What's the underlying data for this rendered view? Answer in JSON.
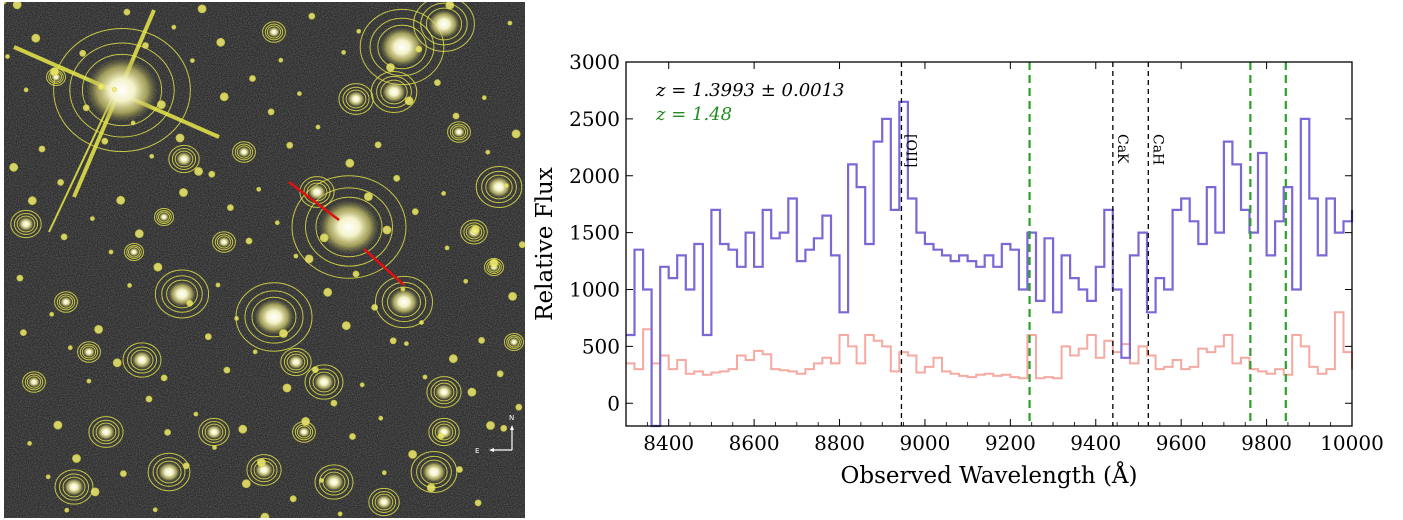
{
  "image_panel": {
    "compass": {
      "north_label": "N",
      "east_label": "E"
    },
    "colors": {
      "background": "#2b2b2b",
      "contour": "#e8e84a",
      "slit": "#e01010"
    }
  },
  "chart_data": {
    "type": "line",
    "title": "",
    "xlabel": "Observed Wavelength (Å)",
    "ylabel": "Relative Flux",
    "xlim": [
      8300,
      10000
    ],
    "ylim": [
      -200,
      3000
    ],
    "xticks": [
      8400,
      8600,
      8800,
      9000,
      9200,
      9400,
      9600,
      9800,
      10000
    ],
    "yticks": [
      0,
      500,
      1000,
      1500,
      2000,
      2500,
      3000
    ],
    "annotations": [
      {
        "text": "z = 1.3993 ± 0.0013",
        "color": "#000000"
      },
      {
        "text": "z = 1.48",
        "color": "#228B22"
      }
    ],
    "lines": [
      {
        "label": "[OII]",
        "x": 8945,
        "color": "#000000",
        "style": "dashed"
      },
      {
        "label": "CaK",
        "x": 9440,
        "color": "#000000",
        "style": "dashed"
      },
      {
        "label": "CaH",
        "x": 9523,
        "color": "#000000",
        "style": "dashed"
      },
      {
        "label": "",
        "x": 9245,
        "color": "#2ca02c",
        "style": "dashed"
      },
      {
        "label": "",
        "x": 9762,
        "color": "#2ca02c",
        "style": "dashed"
      },
      {
        "label": "",
        "x": 9845,
        "color": "#2ca02c",
        "style": "dashed"
      }
    ],
    "series": [
      {
        "color": "#7b68d6",
        "style": "steps",
        "x": [
          8300,
          8320,
          8340,
          8360,
          8380,
          8400,
          8420,
          8440,
          8460,
          8480,
          8500,
          8520,
          8540,
          8560,
          8580,
          8600,
          8620,
          8640,
          8660,
          8680,
          8700,
          8720,
          8740,
          8760,
          8780,
          8800,
          8820,
          8840,
          8860,
          8880,
          8900,
          8920,
          8940,
          8960,
          8980,
          9000,
          9020,
          9040,
          9060,
          9080,
          9100,
          9120,
          9140,
          9160,
          9180,
          9200,
          9220,
          9240,
          9260,
          9280,
          9300,
          9320,
          9340,
          9360,
          9380,
          9400,
          9420,
          9440,
          9460,
          9480,
          9500,
          9520,
          9540,
          9560,
          9580,
          9600,
          9620,
          9640,
          9660,
          9680,
          9700,
          9720,
          9740,
          9760,
          9780,
          9800,
          9820,
          9840,
          9860,
          9880,
          9900,
          9920,
          9940,
          9960,
          9980,
          10000
        ],
        "values": [
          600,
          1350,
          1000,
          -200,
          1200,
          1100,
          1300,
          1000,
          1400,
          600,
          1700,
          1400,
          1350,
          1200,
          1500,
          1200,
          1700,
          1450,
          1500,
          1800,
          1250,
          1350,
          1450,
          1650,
          1300,
          800,
          2100,
          1900,
          1400,
          2300,
          2500,
          1700,
          2650,
          1800,
          1500,
          1400,
          1350,
          1300,
          1250,
          1300,
          1250,
          1200,
          1300,
          1200,
          1400,
          1350,
          1000,
          1500,
          900,
          1450,
          800,
          1300,
          1100,
          1000,
          900,
          1200,
          1700,
          1000,
          400,
          1300,
          1500,
          800,
          1100,
          1000,
          1700,
          1800,
          1600,
          1400,
          1900,
          1500,
          2300,
          2100,
          1700,
          1500,
          2200,
          1300,
          1600,
          1900,
          1000,
          2500,
          1800,
          1300,
          1800,
          1500,
          1600,
          1700
        ]
      },
      {
        "color": "#f5a9a0",
        "style": "steps",
        "x": [
          8300,
          8320,
          8340,
          8360,
          8380,
          8400,
          8420,
          8440,
          8460,
          8480,
          8500,
          8520,
          8540,
          8560,
          8580,
          8600,
          8620,
          8640,
          8660,
          8680,
          8700,
          8720,
          8740,
          8760,
          8780,
          8800,
          8820,
          8840,
          8860,
          8880,
          8900,
          8920,
          8940,
          8960,
          8980,
          9000,
          9020,
          9040,
          9060,
          9080,
          9100,
          9120,
          9140,
          9160,
          9180,
          9200,
          9220,
          9240,
          9260,
          9280,
          9300,
          9320,
          9340,
          9360,
          9380,
          9400,
          9420,
          9440,
          9460,
          9480,
          9500,
          9520,
          9540,
          9560,
          9580,
          9600,
          9620,
          9640,
          9660,
          9680,
          9700,
          9720,
          9740,
          9760,
          9780,
          9800,
          9820,
          9840,
          9860,
          9880,
          9900,
          9920,
          9940,
          9960,
          9980,
          10000
        ],
        "values": [
          350,
          300,
          650,
          350,
          420,
          300,
          380,
          260,
          280,
          250,
          270,
          280,
          300,
          420,
          380,
          460,
          430,
          300,
          290,
          280,
          260,
          300,
          350,
          400,
          350,
          600,
          500,
          350,
          600,
          550,
          500,
          280,
          450,
          420,
          270,
          320,
          400,
          280,
          260,
          240,
          230,
          250,
          260,
          240,
          250,
          230,
          220,
          600,
          220,
          230,
          220,
          500,
          420,
          480,
          600,
          400,
          550,
          450,
          520,
          350,
          500,
          420,
          300,
          320,
          380,
          300,
          320,
          480,
          450,
          500,
          600,
          350,
          400,
          300,
          280,
          260,
          300,
          250,
          600,
          500,
          320,
          260,
          300,
          800,
          450,
          300
        ]
      }
    ]
  }
}
